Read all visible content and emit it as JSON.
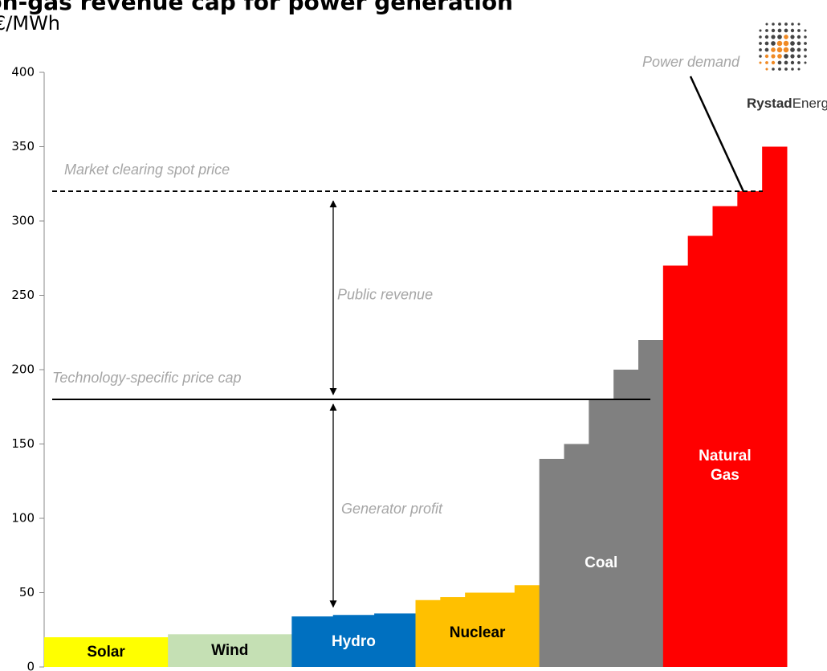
{
  "chart_data": {
    "type": "merit-order",
    "title": "Non-gas revenue cap for power generation",
    "subtitle": "€/MWh",
    "ylim": [
      0,
      400
    ],
    "yticks": [
      0,
      50,
      100,
      150,
      200,
      250,
      300,
      350,
      400
    ],
    "series": [
      {
        "name": "Solar",
        "color": "#ffff00",
        "label_color": "#000000",
        "values": [
          20
        ]
      },
      {
        "name": "Wind",
        "color": "#c5e0b4",
        "label_color": "#000000",
        "values": [
          22
        ]
      },
      {
        "name": "Hydro",
        "color": "#0070c0",
        "label_color": "#ffffff",
        "values": [
          34,
          35,
          36
        ]
      },
      {
        "name": "Nuclear",
        "color": "#ffc000",
        "label_color": "#000000",
        "values": [
          45,
          47,
          50,
          50,
          55
        ]
      },
      {
        "name": "Coal",
        "color": "#808080",
        "label_color": "#ffffff",
        "values": [
          140,
          150,
          180,
          200,
          220
        ]
      },
      {
        "name": "Natural Gas",
        "color": "#ff0000",
        "label_color": "#ffffff",
        "values": [
          270,
          290,
          310,
          320,
          350
        ]
      }
    ],
    "reference_lines": [
      {
        "label": "Market clearing spot price",
        "value": 320,
        "style": "dashed"
      },
      {
        "label": "Technology-specific price cap",
        "value": 180,
        "style": "solid"
      }
    ],
    "annotations": {
      "public_revenue": "Public revenue",
      "generator_profit": "Generator profit",
      "power_demand": "Power demand"
    },
    "logo": {
      "bold": "Rystad",
      "regular": "Energy"
    }
  }
}
